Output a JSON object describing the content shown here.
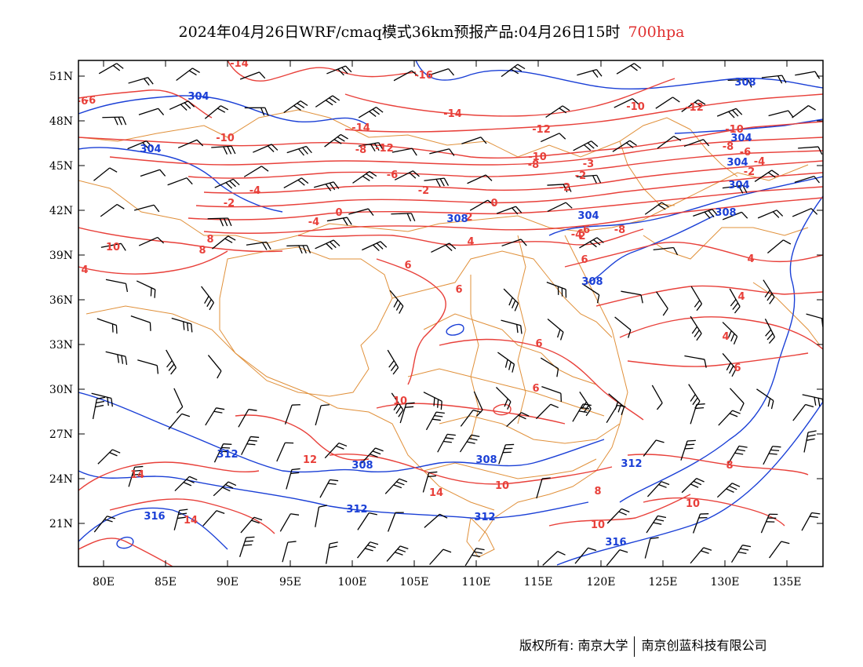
{
  "title": {
    "main": "2024年04月26日WRF/cmaq模式36km预报产品:04月26日15时",
    "level": "700hpa"
  },
  "colors": {
    "temperature": "#e8403a",
    "geopotential": "#1a3fd6",
    "boundary": "#e0903a",
    "wind": "#000000"
  },
  "axes": {
    "lat_ticks": [
      "51N",
      "48N",
      "45N",
      "42N",
      "39N",
      "36N",
      "33N",
      "30N",
      "27N",
      "24N",
      "21N"
    ],
    "lon_ticks": [
      "80E",
      "85E",
      "90E",
      "95E",
      "100E",
      "105E",
      "110E",
      "115E",
      "120E",
      "125E",
      "130E",
      "135E"
    ]
  },
  "temp_labels": [
    "-14",
    "-16",
    "-14",
    "-12",
    "-6",
    "-14",
    "-12",
    "-10",
    "-10",
    "-8",
    "-12",
    "-10",
    "-8",
    "-8",
    "-6",
    "-6",
    "-4",
    "-3",
    "-2",
    "-2",
    "-2",
    "-4",
    "-2",
    "0",
    "0",
    "2",
    "-4",
    "-4",
    "2",
    "-2",
    "-6",
    "-8",
    "-10",
    "-6",
    "6",
    "8",
    "10",
    "8",
    "6",
    "6",
    "4",
    "4",
    "4",
    "4",
    "6",
    "6",
    "6",
    "10",
    "12",
    "8",
    "10",
    "14",
    "14",
    "14",
    "10",
    "8",
    "10",
    "4"
  ],
  "height_labels": [
    "304",
    "304",
    "308",
    "304",
    "304",
    "304",
    "308",
    "308",
    "304",
    "308",
    "312",
    "308",
    "312",
    "308",
    "312",
    "312",
    "316",
    "316"
  ],
  "footer": {
    "left": "版权所有: 南京大学",
    "right": "南京创蓝科技有限公司"
  }
}
